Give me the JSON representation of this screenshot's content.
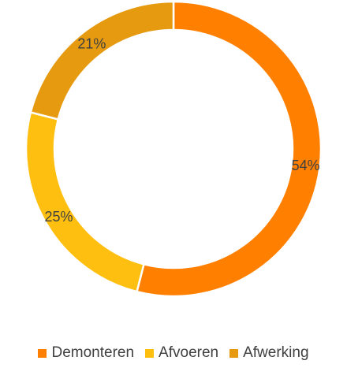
{
  "chart_data": {
    "type": "pie",
    "categories": [
      "Demonteren",
      "Afvoeren",
      "Afwerking"
    ],
    "values": [
      54,
      25,
      21
    ],
    "labels": [
      "54%",
      "25%",
      "21%"
    ],
    "colors": [
      "#FF8000",
      "#FFBF10",
      "#E59A10"
    ],
    "legend_position": "bottom",
    "title": ""
  }
}
